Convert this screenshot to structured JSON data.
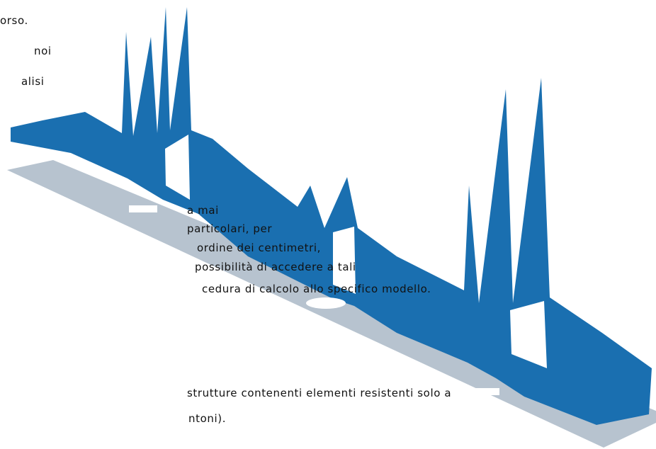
{
  "text_lines": [
    "orso.",
    "noi",
    "alisi",
    "a mai",
    "particolari, per",
    "ordine dei centimetri,",
    "possibilità di accedere a tali",
    "cedura di calcolo allo specifico modello.",
    "strutture contenenti elementi resistenti solo a",
    "ntoni)."
  ]
}
